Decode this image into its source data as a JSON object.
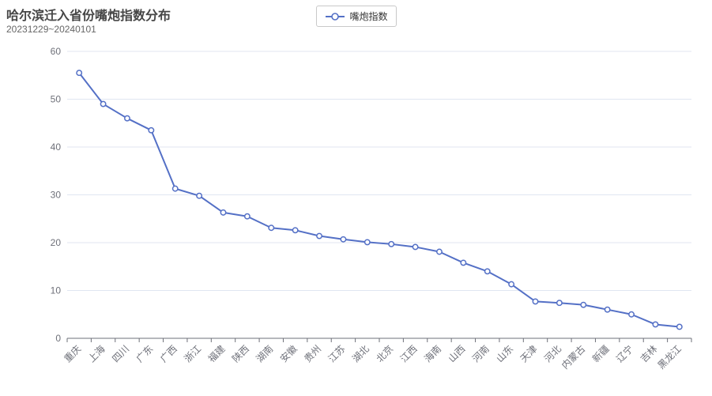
{
  "title": "哈尔滨迁入省份嘴炮指数分布",
  "subtitle": "20231229~20240101",
  "legend": {
    "label": "嘴炮指数"
  },
  "colors": {
    "series": "#5470c6",
    "grid": "#e0e6f1",
    "axis": "#6e7079",
    "label": "#6e7079",
    "title": "#464646",
    "subtitle": "#666666"
  },
  "chart_data": {
    "type": "line",
    "title": "哈尔滨迁入省份嘴炮指数分布",
    "subtitle": "20231229~20240101",
    "legend": [
      "嘴炮指数"
    ],
    "legend_position": "top-center",
    "grid": true,
    "marker": "empty-circle",
    "categories": [
      "重庆",
      "上海",
      "四川",
      "广东",
      "广西",
      "浙江",
      "福建",
      "陕西",
      "湖南",
      "安徽",
      "贵州",
      "江苏",
      "湖北",
      "北京",
      "江西",
      "海南",
      "山西",
      "河南",
      "山东",
      "天津",
      "河北",
      "内蒙古",
      "新疆",
      "辽宁",
      "吉林",
      "黑龙江"
    ],
    "series": [
      {
        "name": "嘴炮指数",
        "values": [
          55.5,
          49,
          46,
          43.5,
          31.3,
          29.8,
          26.3,
          25.5,
          23.1,
          22.6,
          21.4,
          20.7,
          20.1,
          19.7,
          19.1,
          18.1,
          15.8,
          14,
          11.3,
          7.7,
          7.4,
          7,
          6,
          5,
          2.9,
          2.4
        ]
      }
    ],
    "xlabel": "",
    "ylabel": "",
    "ylim": [
      0,
      60
    ],
    "ytick_step": 10
  }
}
